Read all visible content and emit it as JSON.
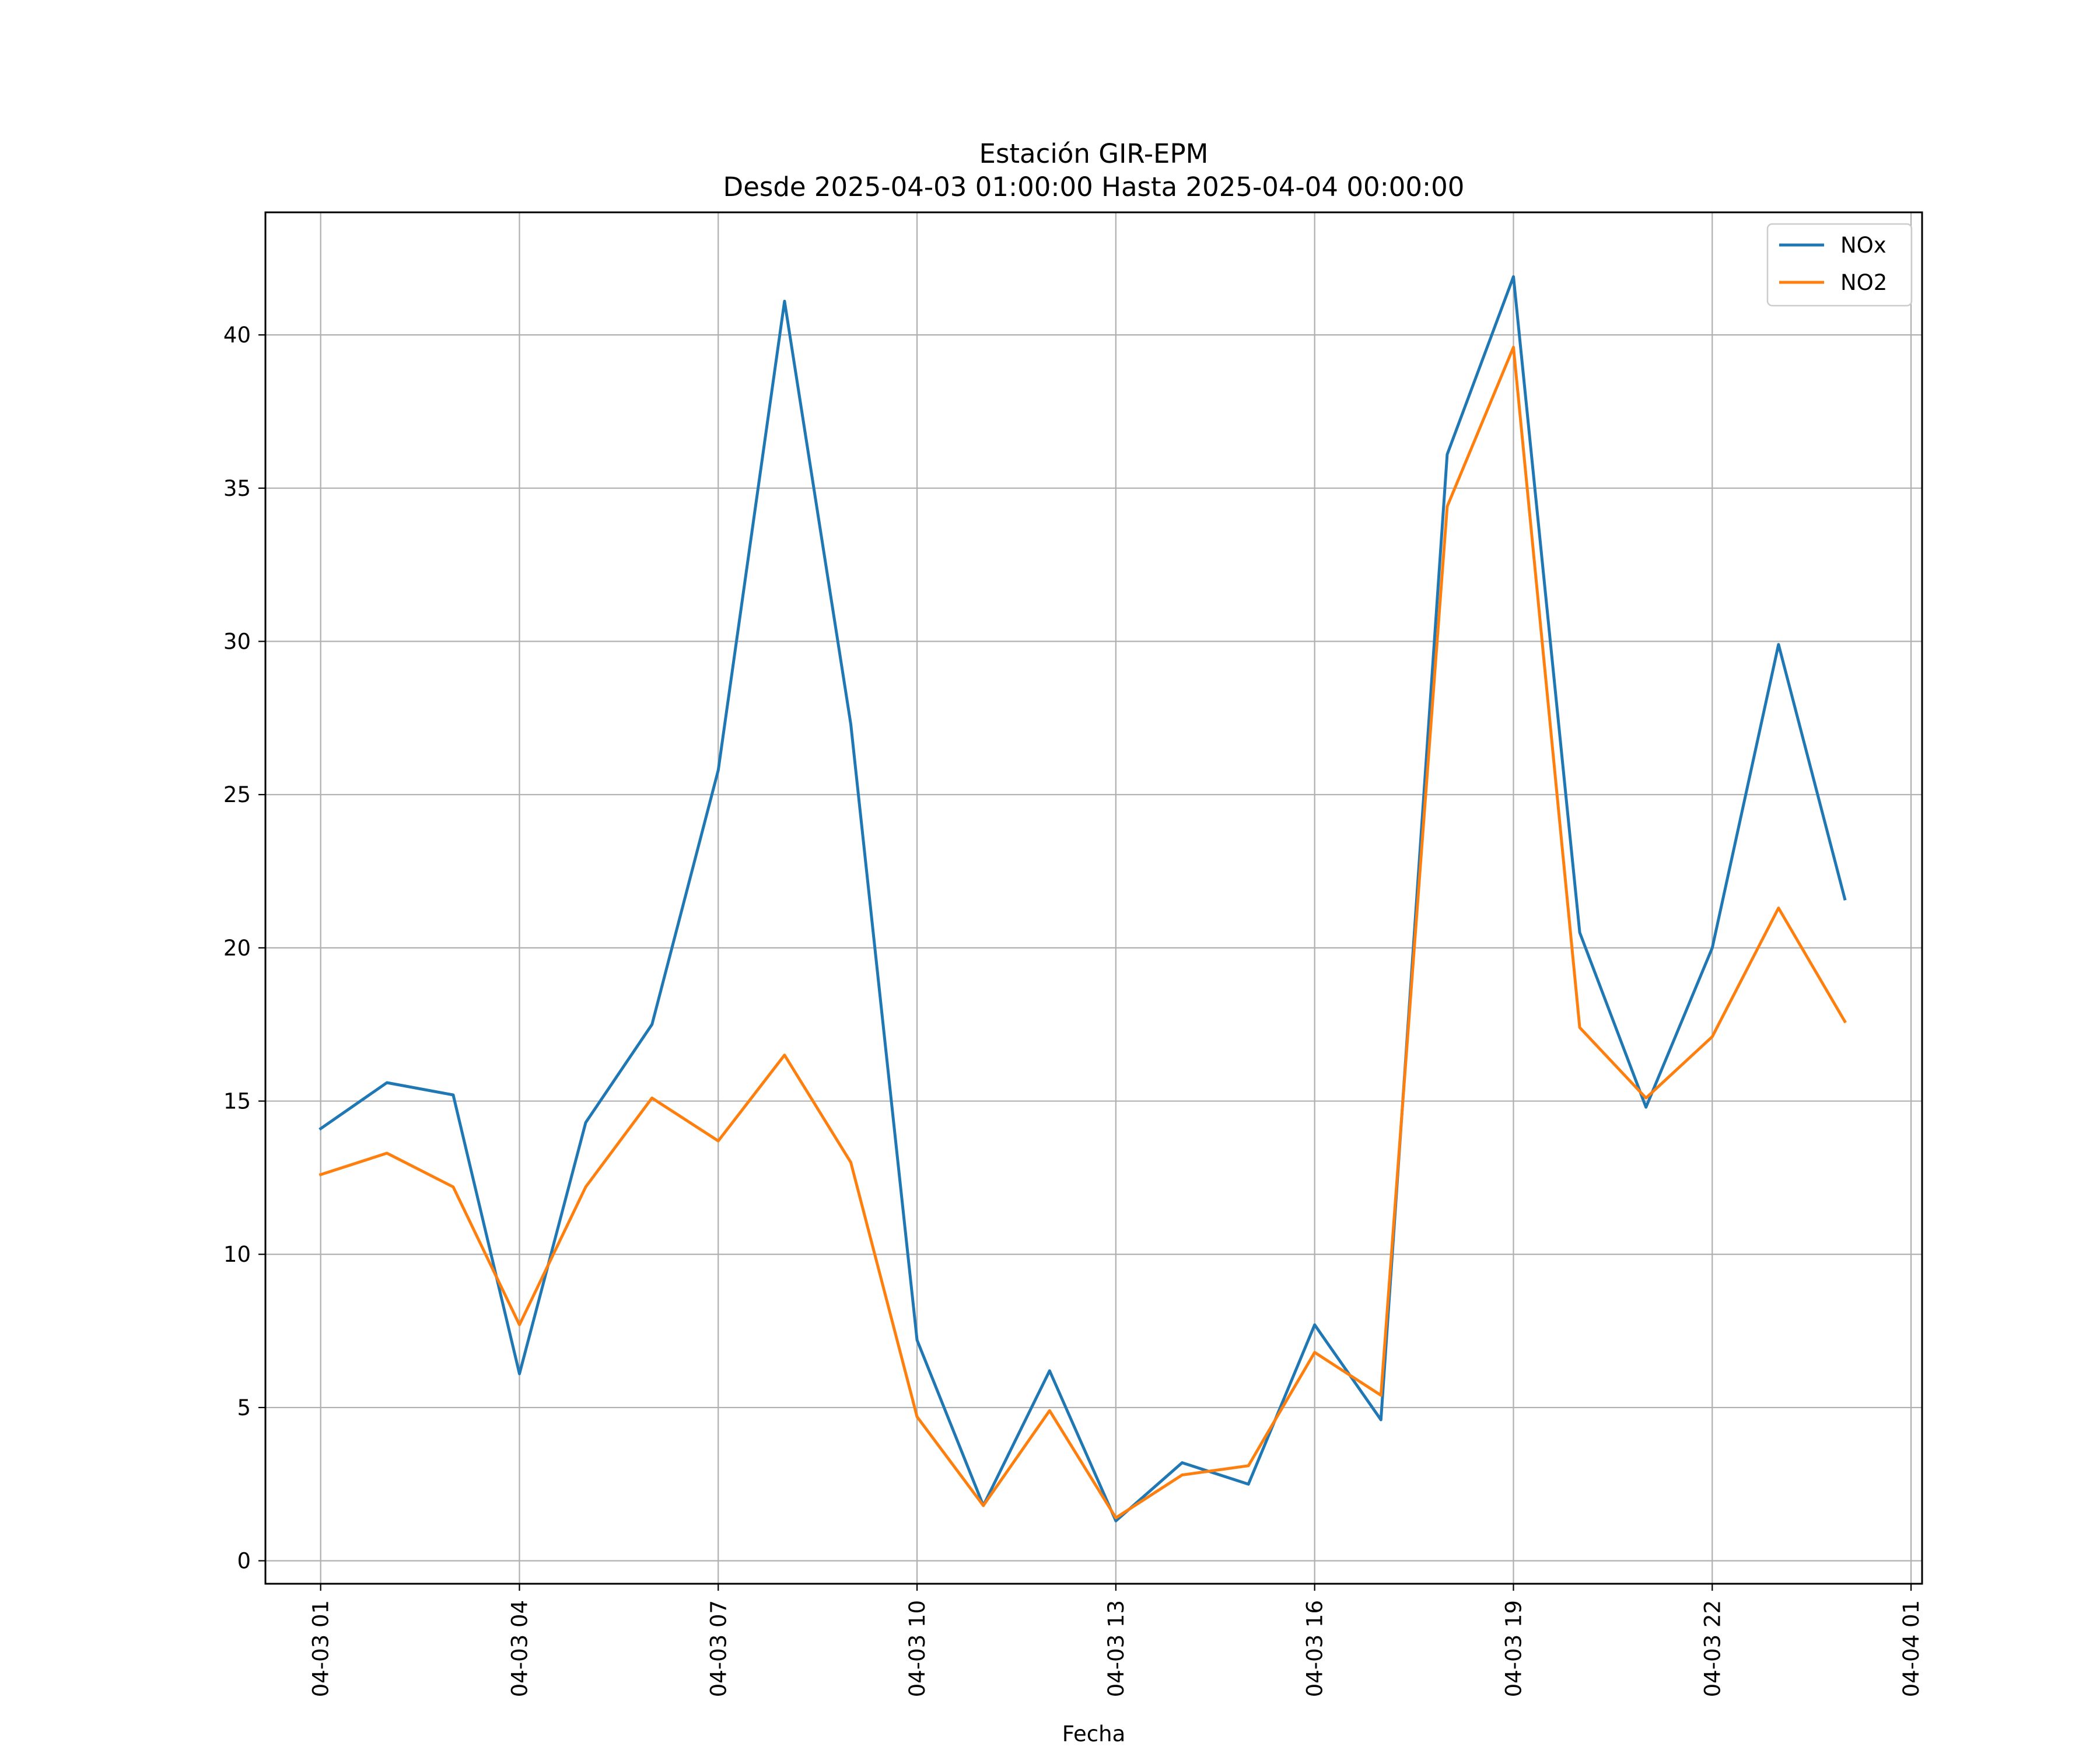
{
  "chart_data": {
    "type": "line",
    "title": "Estación GIR-EPM",
    "subtitle": "Desde 2025-04-03 01:00:00 Hasta 2025-04-04 00:00:00",
    "xlabel": "Fecha",
    "ylabel": "",
    "x": [
      "2025-04-03 01:00",
      "2025-04-03 02:00",
      "2025-04-03 03:00",
      "2025-04-03 04:00",
      "2025-04-03 05:00",
      "2025-04-03 06:00",
      "2025-04-03 07:00",
      "2025-04-03 08:00",
      "2025-04-03 09:00",
      "2025-04-03 10:00",
      "2025-04-03 11:00",
      "2025-04-03 12:00",
      "2025-04-03 13:00",
      "2025-04-03 14:00",
      "2025-04-03 15:00",
      "2025-04-03 16:00",
      "2025-04-03 17:00",
      "2025-04-03 18:00",
      "2025-04-03 19:00",
      "2025-04-03 20:00",
      "2025-04-03 21:00",
      "2025-04-03 22:00",
      "2025-04-03 23:00",
      "2025-04-04 00:00"
    ],
    "xlim": [
      "2025-04-03 00:10",
      "2025-04-04 01:10"
    ],
    "x_ticks": [
      {
        "value": "2025-04-03 01:00",
        "label": "04-03 01"
      },
      {
        "value": "2025-04-03 04:00",
        "label": "04-03 04"
      },
      {
        "value": "2025-04-03 07:00",
        "label": "04-03 07"
      },
      {
        "value": "2025-04-03 10:00",
        "label": "04-03 10"
      },
      {
        "value": "2025-04-03 13:00",
        "label": "04-03 13"
      },
      {
        "value": "2025-04-03 16:00",
        "label": "04-03 16"
      },
      {
        "value": "2025-04-03 19:00",
        "label": "04-03 19"
      },
      {
        "value": "2025-04-03 22:00",
        "label": "04-03 22"
      },
      {
        "value": "2025-04-04 01:00",
        "label": "04-04 01"
      }
    ],
    "ylim": [
      -0.75,
      44
    ],
    "y_ticks": [
      0,
      5,
      10,
      15,
      20,
      25,
      30,
      35,
      40
    ],
    "grid": true,
    "legend_position": "top-right",
    "series": [
      {
        "name": "NOx",
        "color": "#1f77b4",
        "values": [
          14.1,
          15.6,
          15.2,
          6.1,
          14.3,
          17.5,
          25.8,
          41.1,
          27.3,
          7.2,
          1.8,
          6.2,
          1.3,
          3.2,
          2.5,
          7.7,
          4.6,
          36.1,
          41.9,
          20.5,
          14.8,
          20.0,
          29.9,
          21.6
        ]
      },
      {
        "name": "NO2",
        "color": "#ff7f0e",
        "values": [
          12.6,
          13.3,
          12.2,
          7.7,
          12.2,
          15.1,
          13.7,
          16.5,
          13.0,
          4.7,
          1.8,
          4.9,
          1.4,
          2.8,
          3.1,
          6.8,
          5.4,
          34.4,
          39.6,
          17.4,
          15.1,
          17.1,
          21.3,
          17.6
        ]
      }
    ]
  }
}
